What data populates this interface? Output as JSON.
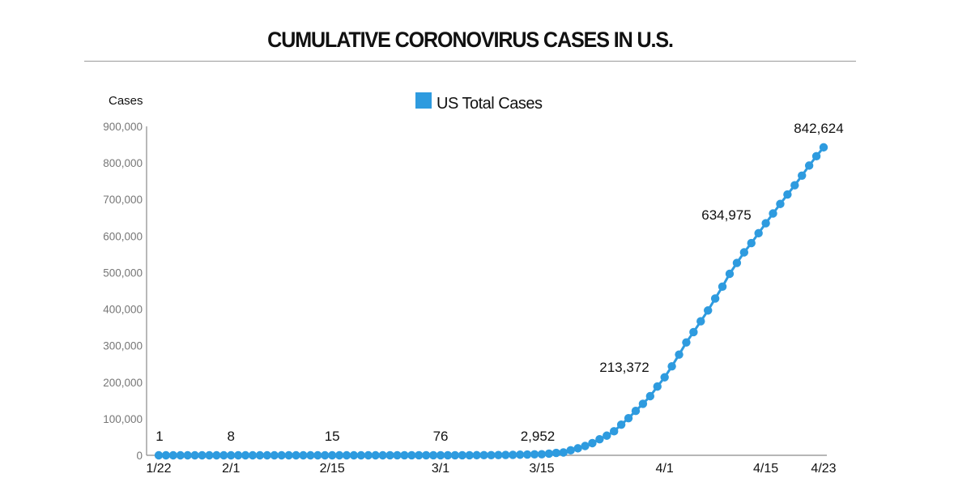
{
  "chart_data": {
    "type": "line",
    "title": "CUMULATIVE CORONOVIRUS CASES IN U.S.",
    "ylabel": "Cases",
    "xlabel": "",
    "ylim": [
      0,
      900000
    ],
    "yticks": [
      0,
      100000,
      200000,
      300000,
      400000,
      500000,
      600000,
      700000,
      800000,
      900000
    ],
    "ytick_labels": [
      "0",
      "100,000",
      "200,000",
      "300,000",
      "400,000",
      "500,000",
      "600,000",
      "700,000",
      "800,000",
      "900,000"
    ],
    "xtick_labels": [
      {
        "label": "1/22",
        "day": 0
      },
      {
        "label": "2/1",
        "day": 10
      },
      {
        "label": "2/15",
        "day": 24
      },
      {
        "label": "3/1",
        "day": 39
      },
      {
        "label": "3/15",
        "day": 53
      },
      {
        "label": "4/1",
        "day": 70
      },
      {
        "label": "4/15",
        "day": 84
      },
      {
        "label": "4/23",
        "day": 92
      }
    ],
    "grid": false,
    "legend": {
      "position": "top-center",
      "entries": [
        {
          "name": "US Total Cases",
          "color": "#2e9bdf"
        }
      ]
    },
    "series": [
      {
        "name": "US Total Cases",
        "color": "#2e9bdf",
        "start_date": "1/22",
        "values": [
          1,
          1,
          2,
          2,
          5,
          5,
          5,
          5,
          6,
          6,
          8,
          8,
          11,
          11,
          11,
          12,
          12,
          12,
          12,
          12,
          13,
          13,
          14,
          14,
          15,
          15,
          15,
          15,
          15,
          15,
          15,
          15,
          35,
          35,
          35,
          53,
          53,
          59,
          60,
          76,
          98,
          118,
          149,
          217,
          262,
          402,
          518,
          583,
          959,
          1281,
          1663,
          2179,
          2727,
          2952,
          4632,
          6421,
          7786,
          13680,
          19101,
          25493,
          33276,
          43847,
          53740,
          65778,
          83836,
          101657,
          121465,
          140909,
          161831,
          188172,
          213372,
          243453,
          275586,
          308850,
          337072,
          366667,
          396223,
          429052,
          461437,
          496535,
          526396,
          555313,
          580619,
          607670,
          634975,
          661712,
          687726,
          713602,
          738830,
          765195,
          792759,
          818290,
          842624
        ]
      }
    ],
    "annotations": [
      {
        "label": "1",
        "day": 0,
        "value": 1
      },
      {
        "label": "8",
        "day": 10,
        "value": 8
      },
      {
        "label": "15",
        "day": 24,
        "value": 15
      },
      {
        "label": "76",
        "day": 39,
        "value": 76
      },
      {
        "label": "2,952",
        "day": 53,
        "value": 2952
      },
      {
        "label": "213,372",
        "day": 70,
        "value": 213372
      },
      {
        "label": "634,975",
        "day": 84,
        "value": 634975
      },
      {
        "label": "842,624",
        "day": 92,
        "value": 842624
      }
    ]
  }
}
